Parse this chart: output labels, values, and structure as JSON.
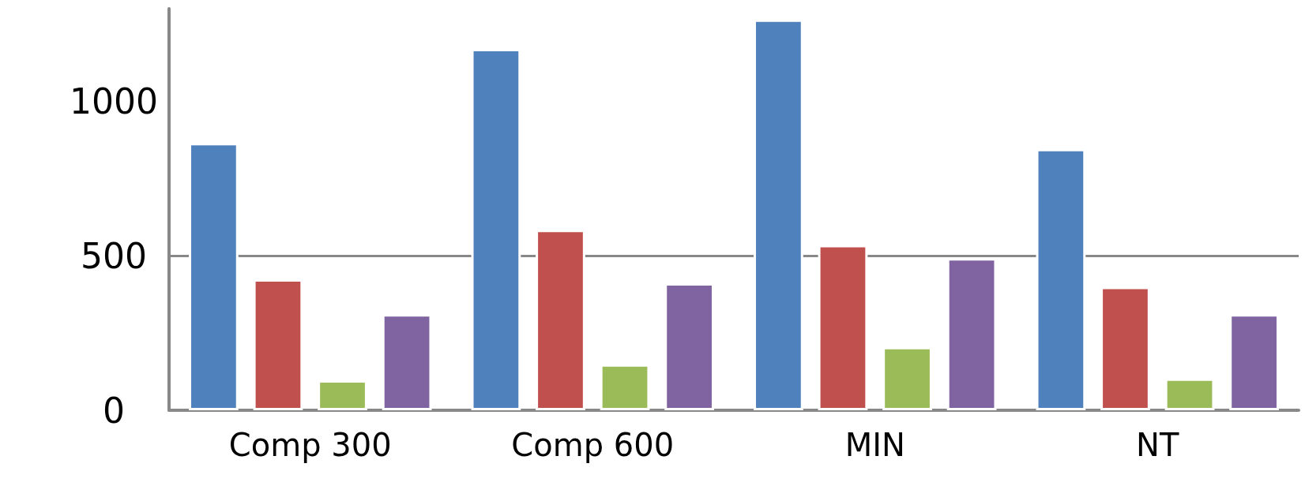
{
  "chart_data": {
    "type": "bar",
    "categories": [
      "Comp 300",
      "Comp 600",
      "MIN",
      "NT"
    ],
    "series": [
      {
        "color": "#4f81bd",
        "values": [
          865,
          1170,
          1265,
          846
        ]
      },
      {
        "color": "#c0504d",
        "values": [
          424,
          584,
          535,
          400
        ]
      },
      {
        "color": "#9bbb59",
        "values": [
          97,
          149,
          205,
          103
        ]
      },
      {
        "color": "#8064a2",
        "values": [
          311,
          411,
          492,
          311
        ]
      }
    ],
    "ylim": [
      0,
      1300
    ],
    "yticks": [
      0,
      500,
      1000
    ],
    "grid": "y"
  }
}
